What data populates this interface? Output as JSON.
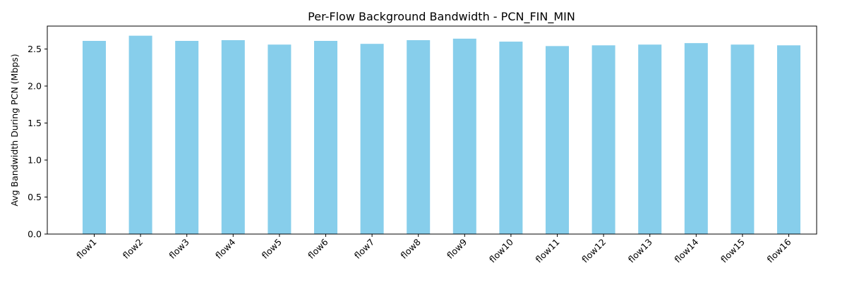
{
  "chart_data": {
    "type": "bar",
    "title": "Per-Flow Background Bandwidth - PCN_FIN_MIN",
    "xlabel": "",
    "ylabel": "Avg Bandwidth During PCN (Mbps)",
    "categories": [
      "flow1",
      "flow2",
      "flow3",
      "flow4",
      "flow5",
      "flow6",
      "flow7",
      "flow8",
      "flow9",
      "flow10",
      "flow11",
      "flow12",
      "flow13",
      "flow14",
      "flow15",
      "flow16"
    ],
    "values": [
      2.61,
      2.68,
      2.61,
      2.62,
      2.56,
      2.61,
      2.57,
      2.62,
      2.64,
      2.6,
      2.54,
      2.55,
      2.56,
      2.58,
      2.56,
      2.55
    ],
    "ylim": [
      0,
      2.81
    ],
    "yticks": [
      0.0,
      0.5,
      1.0,
      1.5,
      2.0,
      2.5
    ],
    "ytick_labels": [
      "0.0",
      "0.5",
      "1.0",
      "1.5",
      "2.0",
      "2.5"
    ],
    "bar_color": "#87ceeb",
    "grid": false,
    "xtick_rotation": 45
  }
}
